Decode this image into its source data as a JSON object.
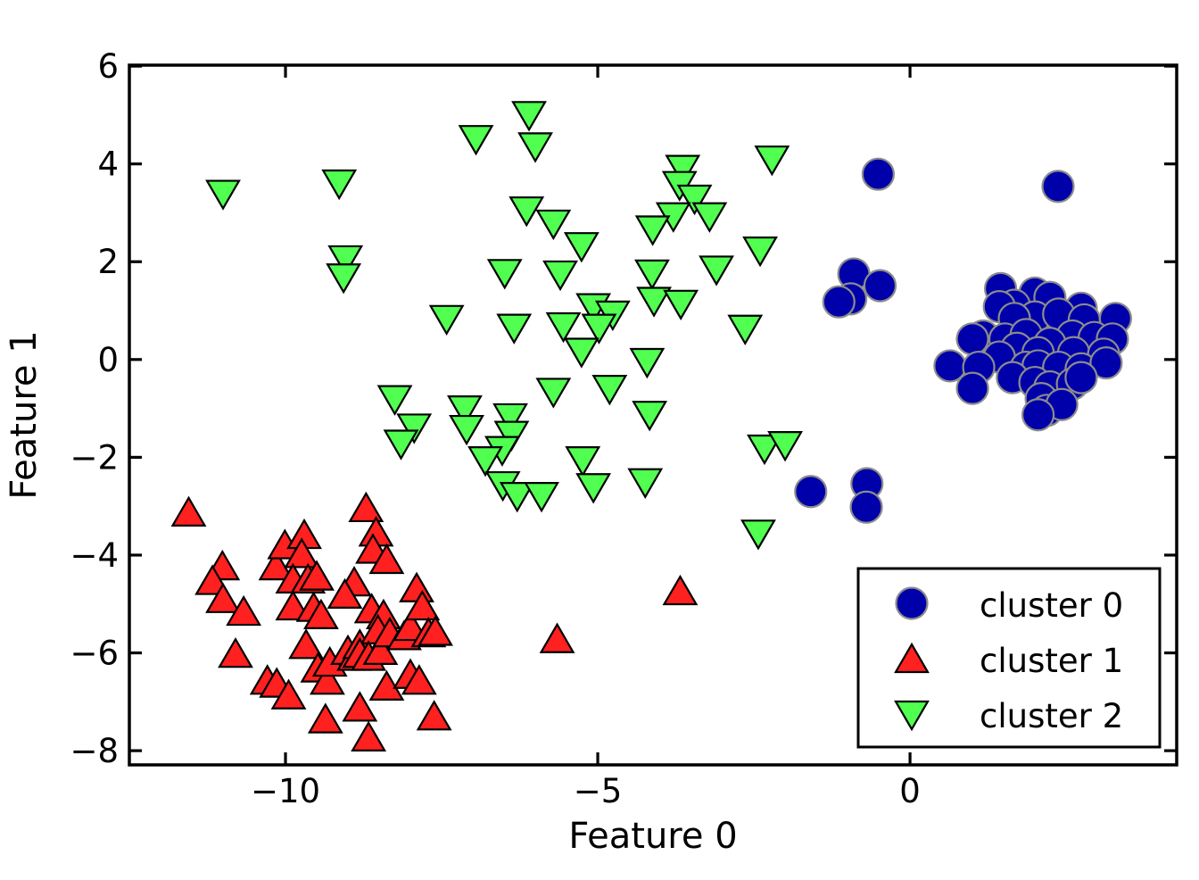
{
  "chart_data": {
    "type": "scatter",
    "title": "",
    "xlabel": "Feature 0",
    "ylabel": "Feature 1",
    "xlim": [
      -12.5,
      4.27
    ],
    "ylim": [
      -8.29,
      6.02
    ],
    "xticks": [
      -10,
      -5,
      0
    ],
    "xtick_labels": [
      "−10",
      "−5",
      "0"
    ],
    "yticks": [
      -8,
      -6,
      -4,
      -2,
      0,
      2,
      4,
      6
    ],
    "ytick_labels": [
      "−8",
      "−6",
      "−4",
      "−2",
      "0",
      "2",
      "4",
      "6"
    ],
    "grid": false,
    "legend_position": "lower right",
    "series": [
      {
        "name": "cluster 0",
        "marker": "circle",
        "color": "#0000aa",
        "edge": "#8c8c8c",
        "points": [
          [
            1.45,
            1.45
          ],
          [
            2.0,
            1.36
          ],
          [
            1.67,
            1.11
          ],
          [
            1.43,
            1.08
          ],
          [
            2.24,
            1.27
          ],
          [
            2.74,
            1.05
          ],
          [
            2.0,
            0.87
          ],
          [
            1.67,
            0.84
          ],
          [
            2.38,
            0.93
          ],
          [
            2.79,
            0.81
          ],
          [
            3.29,
            0.84
          ],
          [
            1.17,
            0.48
          ],
          [
            1.52,
            0.42
          ],
          [
            1.86,
            0.51
          ],
          [
            2.6,
            0.48
          ],
          [
            2.95,
            0.45
          ],
          [
            3.24,
            0.42
          ],
          [
            1.0,
            0.42
          ],
          [
            2.24,
            0.33
          ],
          [
            1.71,
            0.23
          ],
          [
            2.05,
            0.14
          ],
          [
            2.62,
            0.14
          ],
          [
            1.43,
            0.05
          ],
          [
            3.1,
            0.11
          ],
          [
            0.64,
            -0.13
          ],
          [
            1.1,
            -0.16
          ],
          [
            1.86,
            -0.16
          ],
          [
            2.05,
            -0.13
          ],
          [
            2.38,
            -0.16
          ],
          [
            2.74,
            -0.19
          ],
          [
            3.14,
            -0.07
          ],
          [
            1.0,
            -0.59
          ],
          [
            1.64,
            -0.37
          ],
          [
            2.0,
            -0.47
          ],
          [
            2.24,
            -0.56
          ],
          [
            2.6,
            -0.5
          ],
          [
            2.74,
            -0.37
          ],
          [
            2.1,
            -0.8
          ],
          [
            2.19,
            -1.04
          ],
          [
            2.43,
            -0.92
          ],
          [
            2.05,
            -1.13
          ],
          [
            -0.51,
            3.79
          ],
          [
            2.37,
            3.54
          ],
          [
            -0.9,
            1.75
          ],
          [
            -0.48,
            1.51
          ],
          [
            -0.95,
            1.24
          ],
          [
            -1.14,
            1.18
          ],
          [
            -1.59,
            -2.7
          ],
          [
            -0.69,
            -2.54
          ],
          [
            -0.7,
            -3.02
          ]
        ]
      },
      {
        "name": "cluster 1",
        "marker": "triangle-up",
        "color": "#ff2020",
        "edge": "#000000",
        "points": [
          [
            -11.55,
            -3.14
          ],
          [
            -11.01,
            -4.24
          ],
          [
            -11.17,
            -4.54
          ],
          [
            -11.0,
            -4.91
          ],
          [
            -10.67,
            -5.17
          ],
          [
            -10.8,
            -6.03
          ],
          [
            -10.15,
            -4.24
          ],
          [
            -10.01,
            -3.81
          ],
          [
            -9.7,
            -3.6
          ],
          [
            -9.74,
            -3.99
          ],
          [
            -9.88,
            -4.51
          ],
          [
            -9.64,
            -4.51
          ],
          [
            -9.5,
            -4.45
          ],
          [
            -9.88,
            -5.06
          ],
          [
            -9.55,
            -5.09
          ],
          [
            -9.43,
            -5.24
          ],
          [
            -9.67,
            -5.85
          ],
          [
            -10.29,
            -6.58
          ],
          [
            -10.14,
            -6.64
          ],
          [
            -9.95,
            -6.88
          ],
          [
            -9.48,
            -6.33
          ],
          [
            -9.33,
            -6.58
          ],
          [
            -9.29,
            -6.21
          ],
          [
            -9.36,
            -7.37
          ],
          [
            -9.0,
            -5.97
          ],
          [
            -8.9,
            -6.09
          ],
          [
            -8.81,
            -5.85
          ],
          [
            -8.71,
            -3.05
          ],
          [
            -8.55,
            -3.55
          ],
          [
            -8.6,
            -3.9
          ],
          [
            -8.38,
            -4.11
          ],
          [
            -8.9,
            -4.57
          ],
          [
            -9.05,
            -4.82
          ],
          [
            -8.62,
            -5.12
          ],
          [
            -8.43,
            -5.24
          ],
          [
            -8.52,
            -5.55
          ],
          [
            -8.81,
            -6.03
          ],
          [
            -8.67,
            -6.09
          ],
          [
            -8.48,
            -5.97
          ],
          [
            -8.33,
            -5.61
          ],
          [
            -8.81,
            -7.13
          ],
          [
            -8.67,
            -7.74
          ],
          [
            -8.38,
            -6.7
          ],
          [
            -8.1,
            -5.67
          ],
          [
            -8.0,
            -5.48
          ],
          [
            -7.9,
            -4.69
          ],
          [
            -7.81,
            -5.06
          ],
          [
            -7.71,
            -5.61
          ],
          [
            -8.0,
            -6.46
          ],
          [
            -7.86,
            -6.58
          ],
          [
            -7.62,
            -7.31
          ],
          [
            -7.6,
            -5.58
          ],
          [
            -5.65,
            -5.73
          ],
          [
            -3.68,
            -4.75
          ]
        ]
      },
      {
        "name": "cluster 2",
        "marker": "triangle-down",
        "color": "#50ff50",
        "edge": "#000000",
        "points": [
          [
            -11.0,
            3.4
          ],
          [
            -9.14,
            3.61
          ],
          [
            -9.04,
            2.06
          ],
          [
            -9.07,
            1.69
          ],
          [
            -6.95,
            4.52
          ],
          [
            -6.1,
            5.01
          ],
          [
            -6.0,
            4.37
          ],
          [
            -6.14,
            3.06
          ],
          [
            -5.71,
            2.79
          ],
          [
            -5.26,
            2.33
          ],
          [
            -3.64,
            3.91
          ],
          [
            -3.69,
            3.58
          ],
          [
            -3.45,
            3.3
          ],
          [
            -3.79,
            2.94
          ],
          [
            -4.12,
            2.67
          ],
          [
            -3.21,
            2.94
          ],
          [
            -2.21,
            4.1
          ],
          [
            -2.4,
            2.24
          ],
          [
            -3.1,
            1.85
          ],
          [
            -6.49,
            1.78
          ],
          [
            -5.6,
            1.75
          ],
          [
            -4.13,
            1.77
          ],
          [
            -7.42,
            0.84
          ],
          [
            -6.34,
            0.66
          ],
          [
            -5.55,
            0.69
          ],
          [
            -5.07,
            1.08
          ],
          [
            -4.76,
            0.93
          ],
          [
            -4.98,
            0.66
          ],
          [
            -5.26,
            0.17
          ],
          [
            -4.1,
            1.21
          ],
          [
            -3.67,
            1.15
          ],
          [
            -2.64,
            0.64
          ],
          [
            -4.21,
            -0.04
          ],
          [
            -4.81,
            -0.59
          ],
          [
            -5.71,
            -0.65
          ],
          [
            -4.17,
            -1.12
          ],
          [
            -8.25,
            -0.8
          ],
          [
            -7.94,
            -1.38
          ],
          [
            -8.15,
            -1.71
          ],
          [
            -7.13,
            -1.01
          ],
          [
            -7.1,
            -1.41
          ],
          [
            -6.4,
            -1.17
          ],
          [
            -6.38,
            -1.53
          ],
          [
            -6.53,
            -1.84
          ],
          [
            -6.8,
            -2.05
          ],
          [
            -6.52,
            -2.56
          ],
          [
            -6.29,
            -2.78
          ],
          [
            -5.9,
            -2.78
          ],
          [
            -5.24,
            -2.05
          ],
          [
            -5.07,
            -2.6
          ],
          [
            -4.24,
            -2.5
          ],
          [
            -2.33,
            -1.81
          ],
          [
            -2.0,
            -1.74
          ],
          [
            -2.43,
            -3.55
          ]
        ]
      }
    ]
  }
}
